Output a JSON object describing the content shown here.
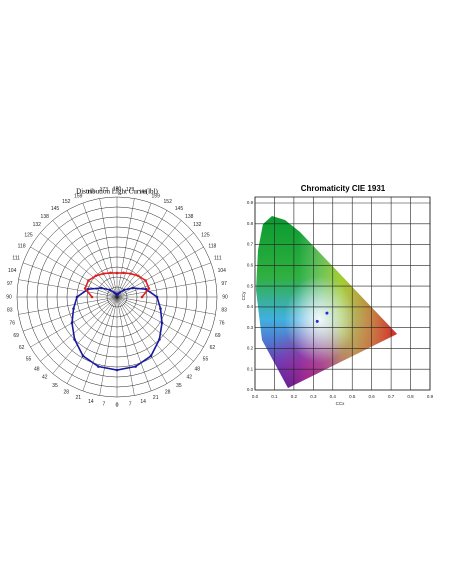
{
  "chart_data": [
    {
      "type": "polar",
      "title": "Distribution Light Curve(lbl)",
      "thetaticks": [
        180,
        173,
        166,
        159,
        152,
        145,
        138,
        132,
        125,
        118,
        111,
        104,
        97,
        90,
        83,
        76,
        69,
        62,
        55,
        48,
        42,
        35,
        28,
        21,
        14,
        7,
        0
      ],
      "theta": [
        -180,
        -165,
        -150,
        -135,
        -120,
        -105,
        -90,
        -75,
        -60,
        -45,
        -30,
        -15,
        0,
        15,
        30,
        45,
        60,
        75,
        90,
        105,
        120,
        135,
        150,
        165,
        180
      ],
      "rlim": [
        0,
        1
      ],
      "series": [
        {
          "color": "#1a1aa0",
          "values": [
            0.02,
            0.03,
            0.05,
            0.1,
            0.18,
            0.3,
            0.4,
            0.45,
            0.52,
            0.6,
            0.68,
            0.72,
            0.73,
            0.72,
            0.68,
            0.6,
            0.52,
            0.45,
            0.4,
            0.3,
            0.18,
            0.1,
            0.05,
            0.03,
            0.02
          ]
        },
        {
          "color": "#e02020",
          "values": [
            0.24,
            0.25,
            0.27,
            0.3,
            0.33,
            0.33,
            0.25,
            null,
            null,
            null,
            null,
            null,
            null,
            null,
            null,
            null,
            null,
            null,
            0.25,
            0.33,
            0.33,
            0.3,
            0.27,
            0.25,
            0.24
          ]
        }
      ]
    },
    {
      "type": "scatter",
      "title": "Chromaticity CIE 1931",
      "xlabel": "CCx",
      "ylabel": "CCy",
      "x": [
        0.37,
        0.32
      ],
      "values": [
        0.37,
        0.33
      ],
      "color": "#2a2ad0",
      "xlim": [
        0,
        0.9
      ],
      "ylim": [
        0,
        0.9
      ],
      "xticks": [
        {
          "value": 0,
          "label": "0.0"
        },
        0.1,
        0.2,
        0.3,
        0.4,
        0.5,
        0.6,
        0.7,
        0.8,
        0.9
      ],
      "yticks": [
        {
          "value": 0,
          "label": "0.0"
        },
        0.1,
        0.2,
        0.3,
        0.4,
        0.5,
        0.6,
        0.7,
        0.8,
        0.9
      ],
      "grid": true
    }
  ]
}
